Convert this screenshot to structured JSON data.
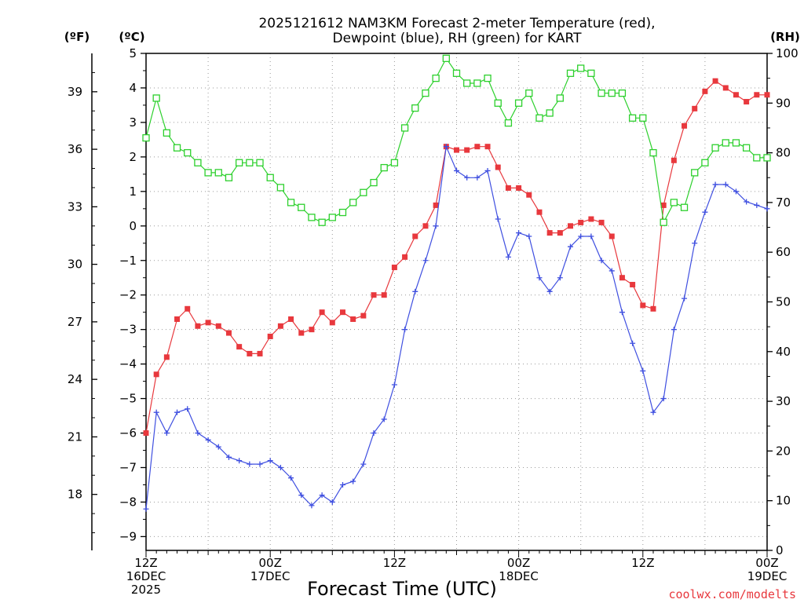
{
  "chart_data": {
    "type": "line",
    "title": [
      "2025121612 NAM3KM Forecast 2-meter Temperature (red),",
      "Dewpoint (blue), RH (green) for KART"
    ],
    "xlabel": "Forecast Time (UTC)",
    "credit": "coolwx.com/modelts",
    "units": {
      "fahrenheit": "(ºF)",
      "celsius": "(ºC)",
      "rh": "(RH)"
    },
    "x_ticks": [
      {
        "hour": 0,
        "lines": [
          "12Z",
          "16DEC",
          "2025"
        ]
      },
      {
        "hour": 12,
        "lines": [
          "00Z",
          "17DEC"
        ]
      },
      {
        "hour": 24,
        "lines": [
          "12Z"
        ]
      },
      {
        "hour": 36,
        "lines": [
          "00Z",
          "18DEC"
        ]
      },
      {
        "hour": 48,
        "lines": [
          "12Z"
        ]
      },
      {
        "hour": 60,
        "lines": [
          "00Z",
          "19DEC"
        ]
      }
    ],
    "x_range_hours": [
      0,
      60
    ],
    "celsius_axis": {
      "range": [
        -9.4,
        5
      ],
      "ticks": [
        5,
        4,
        3,
        2,
        1,
        0,
        -1,
        -2,
        -3,
        -4,
        -5,
        -6,
        -7,
        -8,
        -9
      ],
      "tick_labels": [
        "5",
        "4",
        "3",
        "2",
        "1",
        "0",
        "−1",
        "−2",
        "−3",
        "−4",
        "−5",
        "−6",
        "−7",
        "−8",
        "−9"
      ]
    },
    "fahrenheit_axis": {
      "ticks": [
        39,
        36,
        33,
        30,
        27,
        24,
        21,
        18
      ],
      "tick_labels": [
        "39",
        "36",
        "33",
        "30",
        "27",
        "24",
        "21",
        "18"
      ]
    },
    "rh_axis": {
      "range": [
        0,
        100
      ],
      "ticks": [
        100,
        90,
        80,
        70,
        60,
        50,
        40,
        30,
        20,
        10,
        0
      ],
      "tick_labels": [
        "100",
        "90",
        "80",
        "70",
        "60",
        "50",
        "40",
        "30",
        "20",
        "10",
        "0"
      ]
    },
    "series": [
      {
        "name": "2-meter Temperature",
        "unit": "C",
        "color": "#e8383d",
        "marker": "filled-square",
        "values": [
          -6.0,
          -4.3,
          -3.8,
          -2.7,
          -2.4,
          -2.9,
          -2.8,
          -2.9,
          -3.1,
          -3.5,
          -3.7,
          -3.7,
          -3.2,
          -2.9,
          -2.7,
          -3.1,
          -3.0,
          -2.5,
          -2.8,
          -2.5,
          -2.7,
          -2.6,
          -2.0,
          -2.0,
          -1.2,
          -0.9,
          -0.3,
          0.0,
          0.6,
          2.3,
          2.2,
          2.2,
          2.3,
          2.3,
          1.7,
          1.1,
          1.1,
          0.9,
          0.4,
          -0.2,
          -0.2,
          0.0,
          0.1,
          0.2,
          0.1,
          -0.3,
          -1.5,
          -1.7,
          -2.3,
          -2.4,
          0.6,
          1.9,
          2.9,
          3.4,
          3.9,
          4.2,
          4.0,
          3.8,
          3.6,
          3.8,
          3.8
        ]
      },
      {
        "name": "Dewpoint",
        "unit": "C",
        "color": "#3f4fe0",
        "marker": "plus",
        "values": [
          -8.2,
          -5.4,
          -6.0,
          -5.4,
          -5.3,
          -6.0,
          -6.2,
          -6.4,
          -6.7,
          -6.8,
          -6.9,
          -6.9,
          -6.8,
          -7.0,
          -7.3,
          -7.8,
          -8.1,
          -7.8,
          -8.0,
          -7.5,
          -7.4,
          -6.9,
          -6.0,
          -5.6,
          -4.6,
          -3.0,
          -1.9,
          -1.0,
          0.0,
          2.3,
          1.6,
          1.4,
          1.4,
          1.6,
          0.2,
          -0.9,
          -0.2,
          -0.3,
          -1.5,
          -1.9,
          -1.5,
          -0.6,
          -0.3,
          -0.3,
          -1.0,
          -1.3,
          -2.5,
          -3.4,
          -4.2,
          -5.4,
          -5.0,
          -3.0,
          -2.1,
          -0.5,
          0.4,
          1.2,
          1.2,
          1.0,
          0.7,
          0.6,
          0.5
        ]
      },
      {
        "name": "RH",
        "unit": "%",
        "color": "#2dd02d",
        "marker": "open-square",
        "values": [
          83,
          91,
          84,
          81,
          80,
          78,
          76,
          76,
          75,
          78,
          78,
          78,
          75,
          73,
          70,
          69,
          67,
          66,
          67,
          68,
          70,
          72,
          74,
          77,
          78,
          85,
          89,
          92,
          95,
          99,
          96,
          94,
          94,
          95,
          90,
          86,
          90,
          92,
          87,
          88,
          91,
          96,
          97,
          96,
          92,
          92,
          92,
          87,
          87,
          80,
          66,
          70,
          69,
          76,
          78,
          81,
          82,
          82,
          81,
          79,
          79
        ]
      }
    ]
  }
}
